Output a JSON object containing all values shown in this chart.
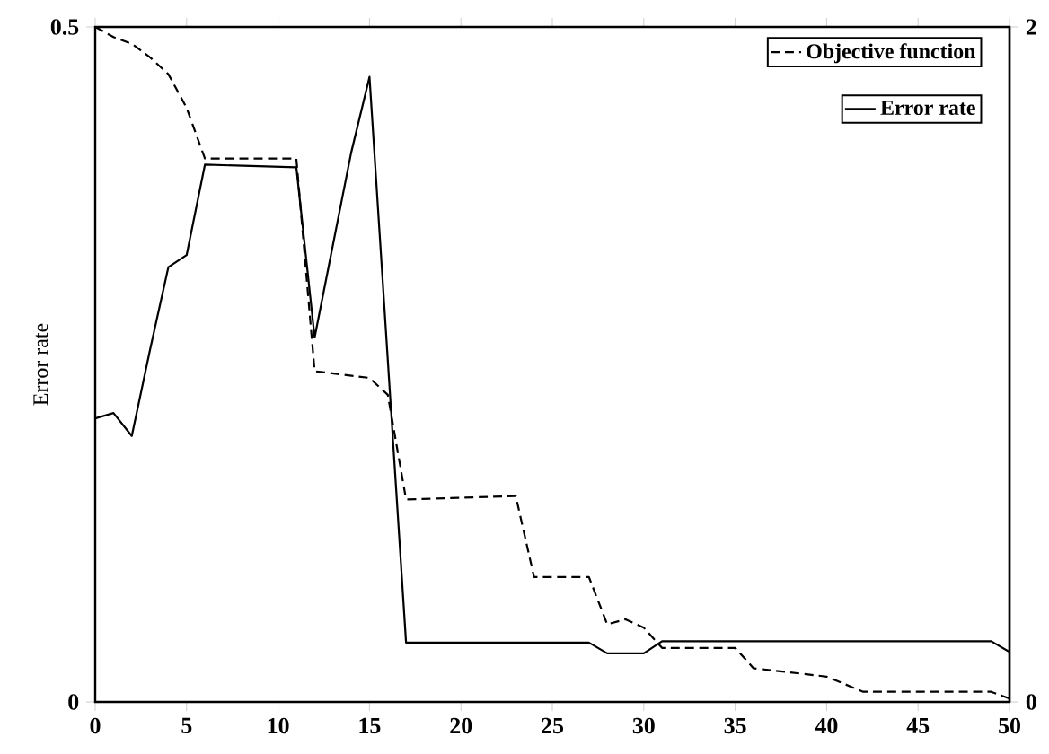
{
  "chart_data": {
    "type": "line",
    "ylabel": "Error rate",
    "xlim": [
      0,
      50
    ],
    "xticks": [
      0,
      5,
      10,
      15,
      20,
      25,
      30,
      35,
      40,
      45,
      50
    ],
    "ylim": [
      0,
      0.5
    ],
    "yticks": [
      0,
      0.5
    ],
    "y2lim": [
      0,
      2
    ],
    "y2ticks": [
      0,
      2
    ],
    "legend": "top right",
    "grid": false,
    "series": [
      {
        "name": "Objective function",
        "color": "#000000",
        "axis": "y2",
        "line_style": "dashed",
        "x": [
          0,
          1,
          2,
          3,
          4,
          5,
          6,
          11,
          12,
          15,
          16,
          17,
          23,
          24,
          27,
          28,
          29,
          30,
          31,
          35,
          36,
          40,
          42,
          49,
          50
        ],
        "values": [
          2.0,
          1.97,
          1.95,
          1.91,
          1.86,
          1.76,
          1.61,
          1.61,
          0.98,
          0.96,
          0.91,
          0.6,
          0.61,
          0.37,
          0.37,
          0.23,
          0.245,
          0.22,
          0.16,
          0.16,
          0.1,
          0.075,
          0.03,
          0.03,
          0.01
        ]
      },
      {
        "name": "Error rate",
        "color": "#000000",
        "axis": "y",
        "line_style": "solid",
        "x": [
          0,
          1,
          2,
          3,
          4,
          5,
          6,
          11,
          12,
          14,
          15,
          17,
          27,
          28,
          30,
          31,
          49,
          50
        ],
        "values": [
          0.21,
          0.214,
          0.197,
          0.261,
          0.322,
          0.331,
          0.398,
          0.396,
          0.27,
          0.407,
          0.463,
          0.044,
          0.044,
          0.036,
          0.036,
          0.045,
          0.045,
          0.037
        ]
      }
    ]
  }
}
